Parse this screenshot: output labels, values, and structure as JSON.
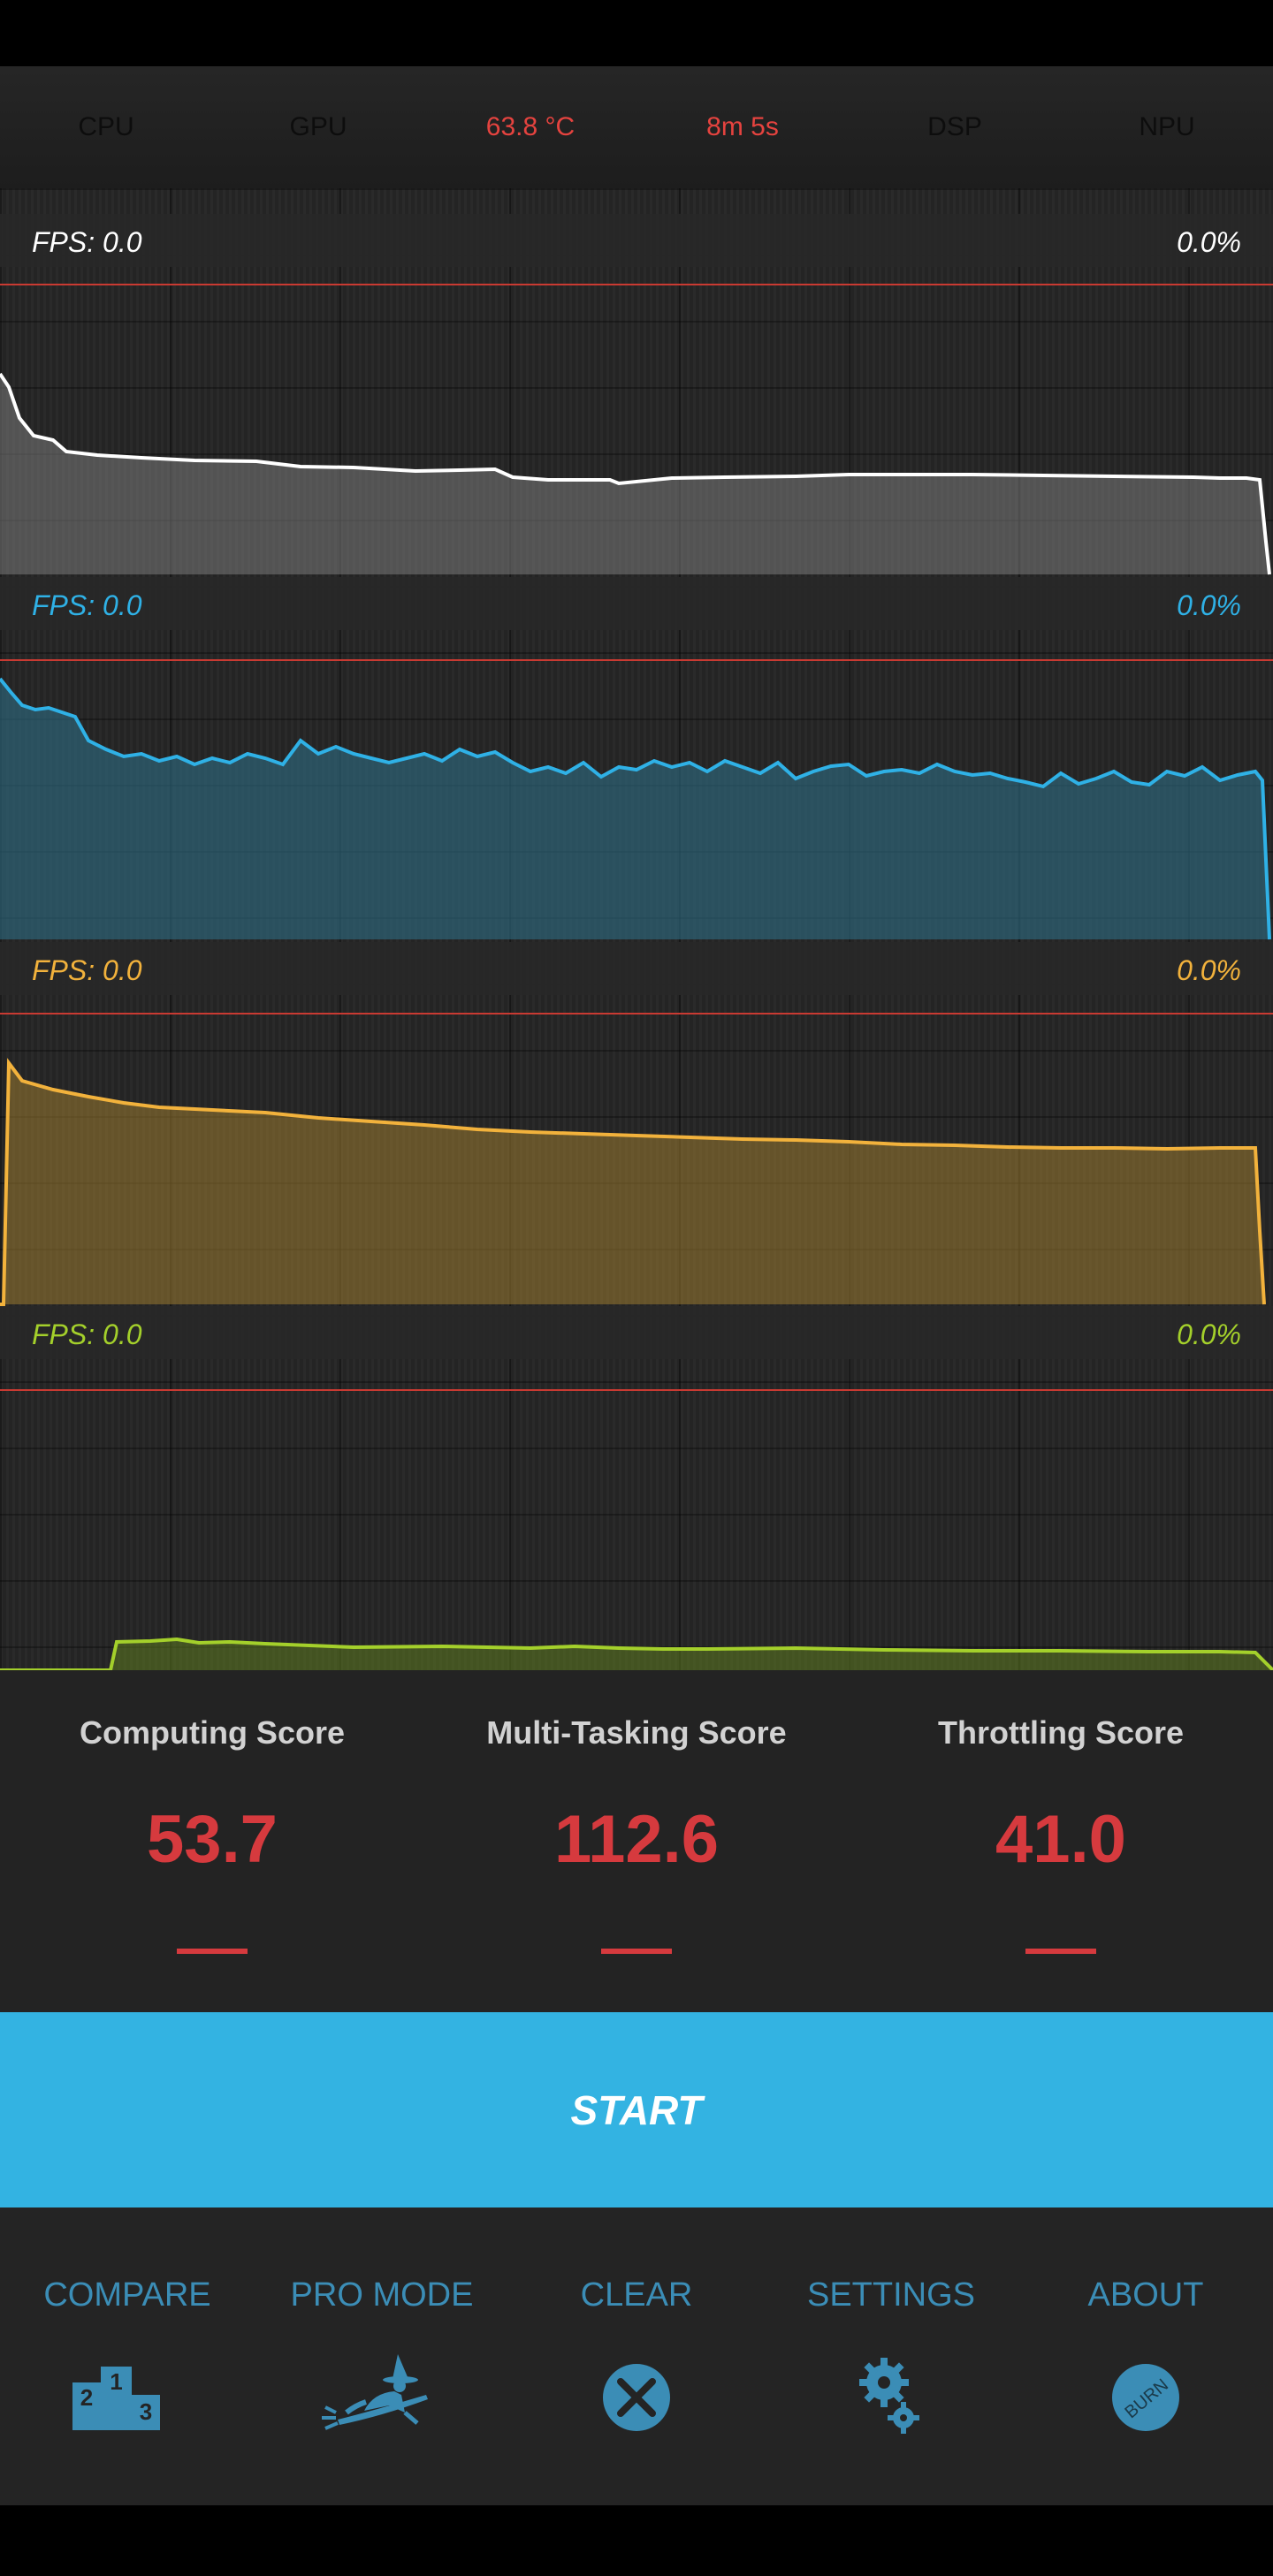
{
  "stats_bar": {
    "items": [
      {
        "label": "CPU",
        "active": false
      },
      {
        "label": "GPU",
        "active": false
      },
      {
        "label": "63.8 °C",
        "active": true
      },
      {
        "label": "8m 5s",
        "active": true
      },
      {
        "label": "DSP",
        "active": false
      },
      {
        "label": "NPU",
        "active": false
      }
    ]
  },
  "graphs": [
    {
      "fps_label": "FPS:  0.0",
      "percent": "0.0%",
      "color": "#ffffff"
    },
    {
      "fps_label": "FPS:  0.0",
      "percent": "0.0%",
      "color": "#2fb1e6"
    },
    {
      "fps_label": "FPS:  0.0",
      "percent": "0.0%",
      "color": "#f2b23c"
    },
    {
      "fps_label": "FPS:  0.0",
      "percent": "0.0%",
      "color": "#a4d02b"
    }
  ],
  "scores": [
    {
      "title": "Computing Score",
      "value": "53.7"
    },
    {
      "title": "Multi-Tasking Score",
      "value": "112.6"
    },
    {
      "title": "Throttling Score",
      "value": "41.0"
    }
  ],
  "start_button": {
    "label": "START"
  },
  "bottom_nav": [
    {
      "label": "COMPARE",
      "icon": "podium-icon"
    },
    {
      "label": "PRO MODE",
      "icon": "witch-icon"
    },
    {
      "label": "CLEAR",
      "icon": "clear-x-icon"
    },
    {
      "label": "SETTINGS",
      "icon": "gear-icon"
    },
    {
      "label": "ABOUT",
      "icon": "burn-logo-icon"
    }
  ],
  "about_icon_text": "BURN",
  "podium_numbers": [
    "2",
    "1",
    "3"
  ],
  "colors": {
    "accent_blue": "#33b3e2",
    "score_red": "#d63a3e",
    "temp_red": "#e5433f",
    "nav_blue": "#3b8db6"
  }
}
